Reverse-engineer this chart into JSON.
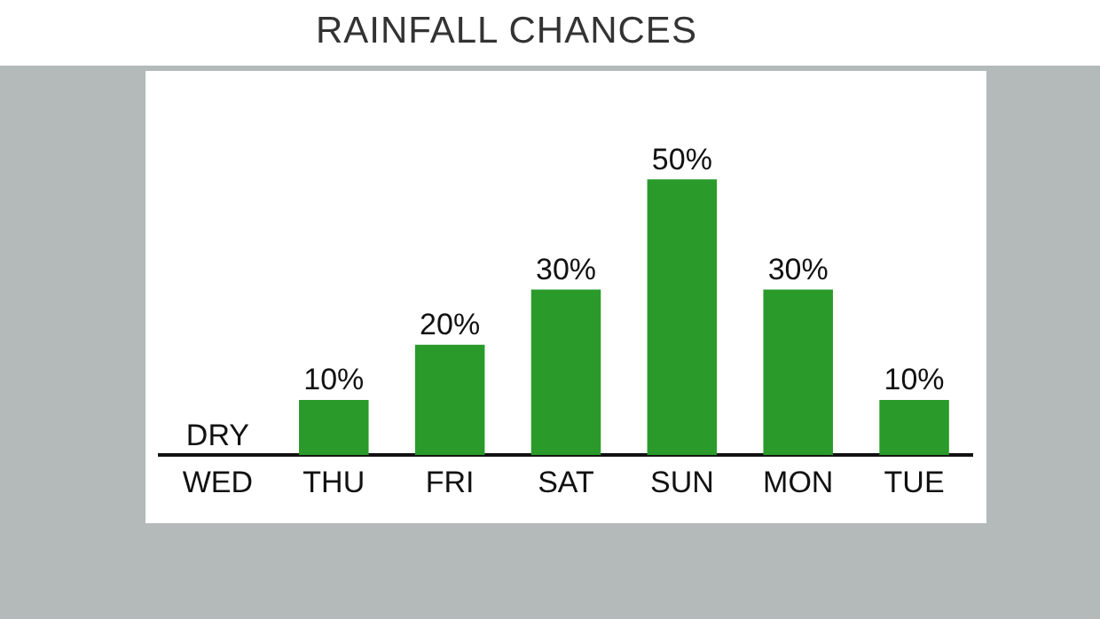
{
  "chart_data": {
    "type": "bar",
    "title": "RAINFALL CHANCES",
    "categories": [
      "WED",
      "THU",
      "FRI",
      "SAT",
      "SUN",
      "MON",
      "TUE"
    ],
    "values": [
      0,
      10,
      20,
      30,
      50,
      30,
      10
    ],
    "value_labels": [
      "DRY",
      "10%",
      "20%",
      "30%",
      "50%",
      "30%",
      "10%"
    ],
    "color": "#2a9a2a",
    "grid": false,
    "legend": false
  }
}
